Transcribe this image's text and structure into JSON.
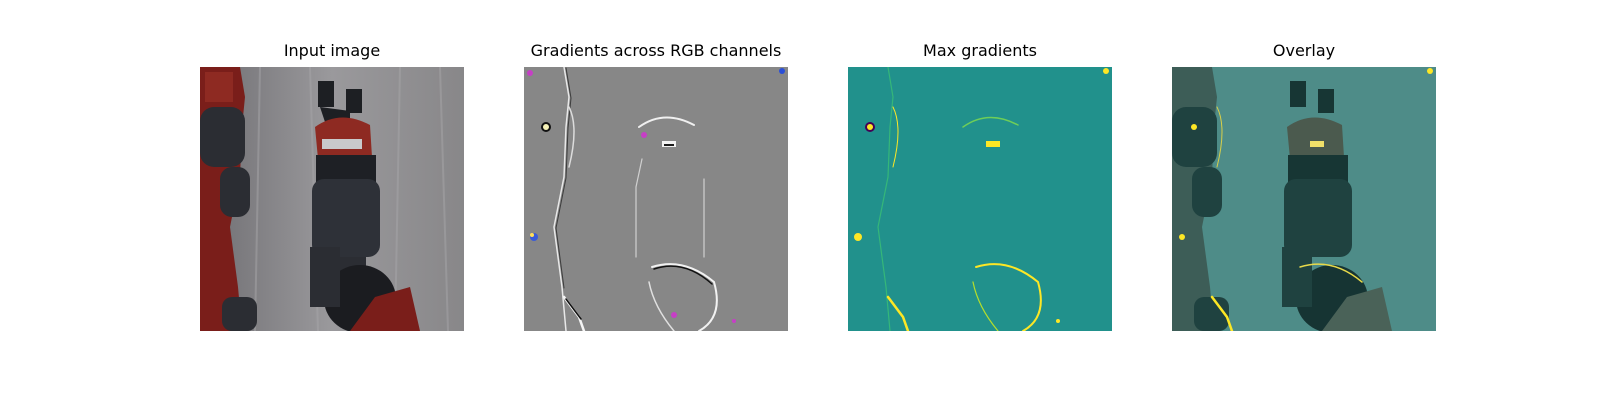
{
  "figure": {
    "panels": [
      {
        "title": "Input image"
      },
      {
        "title": "Gradients across RGB channels"
      },
      {
        "title": "Max gradients"
      },
      {
        "title": "Overlay"
      }
    ]
  },
  "colors": {
    "background": "#ffffff",
    "input_backdrop": "#8c8b8e",
    "robot_red": "#7a1e1a",
    "robot_dark": "#2b2d33",
    "gradient_neutral": "#878787",
    "viridis_mid": "#21918c",
    "viridis_high": "#fde725",
    "overlay_tint": "#3d7f7b"
  }
}
